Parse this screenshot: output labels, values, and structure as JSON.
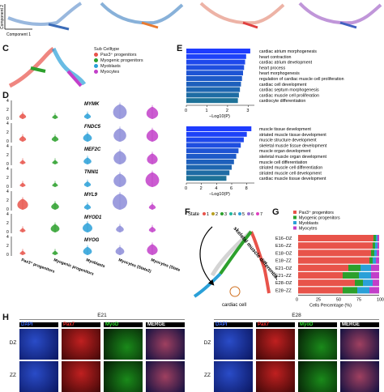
{
  "panel_letters": {
    "c": "C",
    "d": "D",
    "e": "E",
    "f": "F",
    "g": "G",
    "h": "H"
  },
  "panel_a": {
    "ylabel": "Component 2",
    "xlabel": "Component 1"
  },
  "panel_c": {
    "legend_title": "Sub Celltype",
    "items": [
      {
        "label": "Pax3⁺ progenitors",
        "color": "#e8534a"
      },
      {
        "label": "Myogenic progenitors",
        "color": "#2ca02c"
      },
      {
        "label": "Myoblasts",
        "color": "#2aa0d8"
      },
      {
        "label": "Myocytes",
        "color": "#c23fc9"
      }
    ]
  },
  "panel_d": {
    "genes": [
      "MYMK",
      "FNDC5",
      "MEF2C",
      "TNNI1",
      "MYL9",
      "MYOD1",
      "MYOG"
    ],
    "yticks": [
      "4",
      "3",
      "2",
      "1",
      "0"
    ],
    "groups": [
      "Pax3⁺ progenitors",
      "Myogenic progenitors",
      "Myoblasts",
      "Myocytes (State2)",
      "Myocytes (State7)"
    ]
  },
  "panel_e": {
    "chart_data": [
      {
        "type": "bar",
        "orientation": "horizontal",
        "categories": [
          "cardiac atrium morphogenesis",
          "heart contraction",
          "cardiac atrium development",
          "heart process",
          "heart morphogenesis",
          "regulation of cardiac muscle cell proliferation",
          "cardiac cell development",
          "cardiac septum morphogenesis",
          "cardiac muscle cell proliferation",
          "cardiocyte differentiation"
        ],
        "values": [
          3.1,
          2.9,
          2.85,
          2.8,
          2.75,
          2.7,
          2.65,
          2.6,
          2.55,
          2.5
        ],
        "xlabel": "−Log10(P)",
        "xlim": [
          0,
          3.3
        ],
        "xticks": [
          "0",
          "1",
          "2",
          "3"
        ]
      },
      {
        "type": "bar",
        "orientation": "horizontal",
        "categories": [
          "muscle tissue development",
          "striated muscle tissue development",
          "muscle structure development",
          "skeletal muscle tissue development",
          "muscle organ development",
          "skeletal muscle organ development",
          "muscle cell differentiation",
          "striated muscle cell differentiation",
          "striated muscle cell development",
          "cardiac muscle tissue development"
        ],
        "values": [
          8.6,
          8.0,
          7.6,
          7.2,
          6.9,
          6.6,
          6.3,
          6.0,
          5.7,
          5.3
        ],
        "xlabel": "−Log10(P)",
        "xlim": [
          0,
          9
        ],
        "xticks": [
          "0",
          "2",
          "4",
          "6",
          "8"
        ]
      }
    ]
  },
  "panel_f": {
    "state_label": "State",
    "states": [
      {
        "n": "1",
        "color": "#e8534a"
      },
      {
        "n": "2",
        "color": "#b8a020"
      },
      {
        "n": "3",
        "color": "#2ca02c"
      },
      {
        "n": "4",
        "color": "#1fb8a0"
      },
      {
        "n": "5",
        "color": "#2aa0d8"
      },
      {
        "n": "6",
        "color": "#9a6fd0"
      },
      {
        "n": "7",
        "color": "#e040c0"
      }
    ],
    "arrow_label": "skeletal muscle differentiation",
    "cardiac_label": "cardiac cell"
  },
  "panel_g": {
    "legend": [
      {
        "label": "Pax3⁺ progenitors",
        "color": "#e8534a"
      },
      {
        "label": "Myogenic progenitors",
        "color": "#2ca02c"
      },
      {
        "label": "Myoblasts",
        "color": "#2aa0d8"
      },
      {
        "label": "Myocytes",
        "color": "#c23fc9"
      }
    ],
    "chart_data": {
      "type": "bar",
      "orientation": "horizontal",
      "stacked": true,
      "categories": [
        "E16−DZ",
        "E16−ZZ",
        "E18−DZ",
        "E18−ZZ",
        "E21−DZ",
        "E21−ZZ",
        "E28−DZ",
        "E28−ZZ"
      ],
      "series": [
        {
          "name": "Pax3⁺ progenitors",
          "values": [
            93,
            92,
            90,
            88,
            62,
            55,
            70,
            55
          ]
        },
        {
          "name": "Myogenic progenitors",
          "values": [
            3,
            3,
            4,
            4,
            15,
            20,
            10,
            18
          ]
        },
        {
          "name": "Myoblasts",
          "values": [
            2,
            3,
            3,
            4,
            13,
            15,
            12,
            15
          ]
        },
        {
          "name": "Myocytes",
          "values": [
            2,
            2,
            3,
            4,
            10,
            10,
            8,
            12
          ]
        }
      ],
      "xlabel": "Cells Percentage (%)",
      "xlim": [
        0,
        100
      ],
      "xticks": [
        "0",
        "25",
        "50",
        "75",
        "100"
      ]
    }
  },
  "panel_h": {
    "groups": [
      {
        "title": "E21"
      },
      {
        "title": "E28"
      }
    ],
    "channels": [
      {
        "label": "DAPI",
        "color": "#3b6cff"
      },
      {
        "label": "Pax7",
        "color": "#ff3030"
      },
      {
        "label": "MyoD",
        "color": "#30e030"
      },
      {
        "label": "MERGE",
        "color": "#ffffff"
      }
    ],
    "rows": [
      "DZ",
      "ZZ"
    ]
  }
}
